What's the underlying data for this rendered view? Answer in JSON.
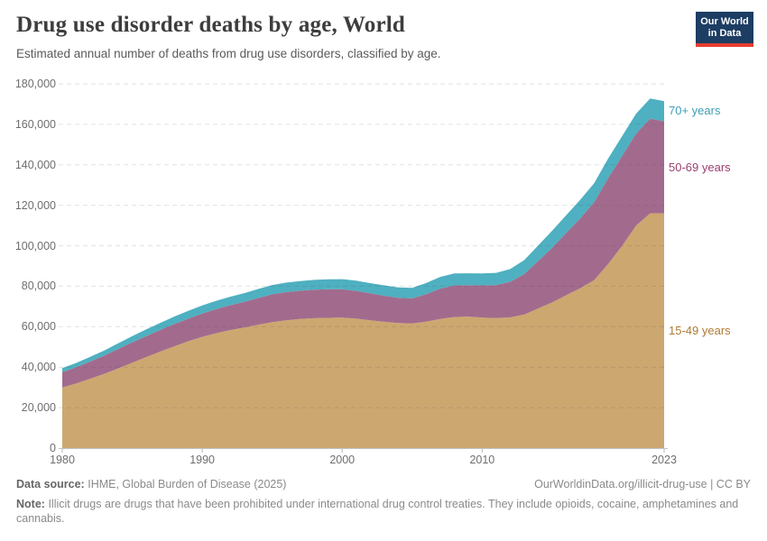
{
  "header": {
    "title": "Drug use disorder deaths by age, World",
    "subtitle": "Estimated annual number of deaths from drug use disorders, classified by age.",
    "logo_line1": "Our World",
    "logo_line2": "in Data",
    "logo_bg": "#1d3d63",
    "logo_stripe": "#e63e31"
  },
  "chart_data": {
    "type": "area",
    "stacked": true,
    "title": "Drug use disorder deaths by age, World",
    "xlabel": "",
    "ylabel": "Estimated annual number of deaths",
    "grid": "dashed-horizontal",
    "legend_position": "right-of-plot",
    "ylim": [
      0,
      180000
    ],
    "yticks": [
      0,
      20000,
      40000,
      60000,
      80000,
      100000,
      120000,
      140000,
      160000,
      180000
    ],
    "xticks": [
      1980,
      1990,
      2000,
      2010,
      2023
    ],
    "x": [
      1980,
      1981,
      1982,
      1983,
      1984,
      1985,
      1986,
      1987,
      1988,
      1989,
      1990,
      1991,
      1992,
      1993,
      1994,
      1995,
      1996,
      1997,
      1998,
      1999,
      2000,
      2001,
      2002,
      2003,
      2004,
      2005,
      2006,
      2007,
      2008,
      2009,
      2010,
      2011,
      2012,
      2013,
      2014,
      2015,
      2016,
      2017,
      2018,
      2019,
      2020,
      2021,
      2022,
      2023
    ],
    "series": [
      {
        "name": "15-49 years",
        "color": "#cda770",
        "label_color": "#b07b36",
        "values": [
          30000,
          32000,
          34300,
          36700,
          39400,
          42200,
          45000,
          47700,
          50300,
          52800,
          55000,
          56800,
          58300,
          59600,
          61000,
          62300,
          63200,
          63800,
          64200,
          64400,
          64500,
          64000,
          63200,
          62400,
          61800,
          61600,
          62500,
          63800,
          64800,
          65000,
          64500,
          64300,
          64600,
          66000,
          69000,
          72000,
          75500,
          79000,
          83000,
          91000,
          100000,
          110000,
          116000,
          116000
        ]
      },
      {
        "name": "50-69 years",
        "color": "#a26b8d",
        "label_color": "#9c3f71",
        "values": [
          7500,
          8000,
          8500,
          9000,
          9600,
          10100,
          10400,
          10700,
          11000,
          11200,
          11500,
          11900,
          12300,
          12700,
          13200,
          13700,
          13900,
          14000,
          14100,
          14100,
          14000,
          13700,
          13300,
          12900,
          12500,
          12400,
          13600,
          15000,
          15600,
          15500,
          15900,
          16300,
          17600,
          20000,
          23500,
          27000,
          30800,
          34500,
          38500,
          42500,
          44500,
          45500,
          46800,
          45500
        ]
      },
      {
        "name": "70+ years",
        "color": "#4eb0c0",
        "label_color": "#3e9fb4",
        "values": [
          2000,
          2100,
          2300,
          2500,
          2800,
          3100,
          3300,
          3500,
          3700,
          3850,
          4000,
          4100,
          4200,
          4300,
          4450,
          4600,
          4700,
          4750,
          4850,
          4950,
          5000,
          5050,
          5050,
          5100,
          5100,
          5200,
          5500,
          5800,
          5900,
          5900,
          5900,
          6000,
          6300,
          6900,
          7600,
          8400,
          8800,
          9100,
          9400,
          9600,
          9700,
          9800,
          10000,
          10000
        ]
      }
    ]
  },
  "footer": {
    "datasource_label": "Data source:",
    "datasource_value": "IHME, Global Burden of Disease (2025)",
    "credit": "OurWorldinData.org/illicit-drug-use | CC BY",
    "note_label": "Note:",
    "note_text": "Illicit drugs are drugs that have been prohibited under international drug control treaties. They include opioids, cocaine, amphetamines and cannabis."
  }
}
